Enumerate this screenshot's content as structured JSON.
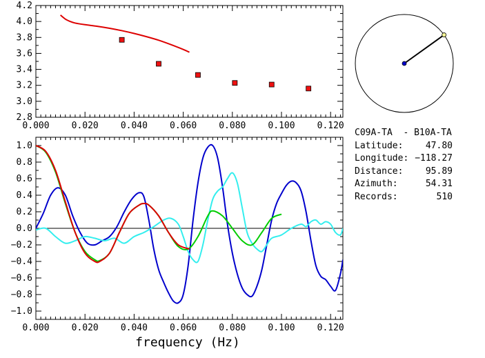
{
  "station_pair": "C09A-TA  - B10A-TA",
  "info": [
    {
      "label": "Latitude:",
      "value": "47.80"
    },
    {
      "label": "Longitude:",
      "value": "-118.27"
    },
    {
      "label": "Distance:",
      "value": "95.89"
    },
    {
      "label": "Azimuth:",
      "value": "54.31"
    },
    {
      "label": "Records:",
      "value": "510"
    }
  ],
  "colors": {
    "red": "#dd0000",
    "blue": "#0000cc",
    "green": "#00cc00",
    "cyan": "#33eeee",
    "marker": "#ee1111"
  },
  "chart_data": [
    {
      "type": "line",
      "title": "",
      "xlabel": "",
      "ylabel": "",
      "xlim": [
        0.0,
        0.125
      ],
      "ylim": [
        2.8,
        4.2
      ],
      "xticks": [
        "0.000",
        "0.020",
        "0.040",
        "0.060",
        "0.080",
        "0.100",
        "0.120"
      ],
      "yticks": [
        "2.8",
        "3.0",
        "3.2",
        "3.4",
        "3.6",
        "3.8",
        "4.0",
        "4.2"
      ],
      "series": [
        {
          "kind": "line",
          "color": "#dd0000",
          "x": [
            0.01,
            0.012,
            0.014,
            0.016,
            0.02,
            0.025,
            0.03,
            0.035,
            0.04,
            0.045,
            0.05,
            0.055,
            0.06,
            0.0625
          ],
          "y": [
            4.08,
            4.03,
            4.0,
            3.98,
            3.96,
            3.94,
            3.915,
            3.885,
            3.85,
            3.81,
            3.765,
            3.71,
            3.65,
            3.615
          ]
        },
        {
          "kind": "markers",
          "color": "#ee1111",
          "x": [
            0.035,
            0.05,
            0.066,
            0.081,
            0.096,
            0.111
          ],
          "y": [
            3.77,
            3.47,
            3.33,
            3.23,
            3.21,
            3.16
          ]
        }
      ]
    },
    {
      "type": "line",
      "title": "",
      "xlabel": "frequency (Hz)",
      "ylabel": "",
      "xlim": [
        0.0,
        0.125
      ],
      "ylim": [
        -1.1,
        1.1
      ],
      "xticks": [
        "0.000",
        "0.020",
        "0.040",
        "0.060",
        "0.080",
        "0.100",
        "0.120"
      ],
      "yticks": [
        "1.0",
        "0.8",
        "0.6",
        "0.4",
        "0.2",
        "0.0",
        "-0.2",
        "-0.4",
        "-0.6",
        "-0.8",
        "-1.0"
      ],
      "zero_line": true,
      "series": [
        {
          "color": "#0000cc",
          "x": [
            0.0,
            0.003,
            0.006,
            0.009,
            0.012,
            0.015,
            0.018,
            0.021,
            0.024,
            0.027,
            0.03,
            0.033,
            0.036,
            0.039,
            0.042,
            0.044,
            0.046,
            0.048,
            0.05,
            0.052,
            0.054,
            0.056,
            0.058,
            0.06,
            0.062,
            0.064,
            0.066,
            0.068,
            0.07,
            0.072,
            0.074,
            0.076,
            0.078,
            0.08,
            0.082,
            0.084,
            0.086,
            0.088,
            0.09,
            0.092,
            0.094,
            0.096,
            0.098,
            0.1,
            0.102,
            0.104,
            0.106,
            0.108,
            0.11,
            0.112,
            0.114,
            0.116,
            0.118,
            0.12,
            0.122,
            0.124,
            0.125
          ],
          "y": [
            0.0,
            0.18,
            0.4,
            0.49,
            0.4,
            0.15,
            -0.05,
            -0.18,
            -0.2,
            -0.15,
            -0.1,
            0.02,
            0.2,
            0.35,
            0.43,
            0.38,
            0.1,
            -0.25,
            -0.5,
            -0.65,
            -0.78,
            -0.88,
            -0.9,
            -0.8,
            -0.45,
            0.1,
            0.55,
            0.85,
            0.98,
            1.0,
            0.85,
            0.5,
            0.05,
            -0.3,
            -0.55,
            -0.72,
            -0.8,
            -0.82,
            -0.7,
            -0.5,
            -0.2,
            0.1,
            0.3,
            0.42,
            0.52,
            0.57,
            0.55,
            0.45,
            0.2,
            -0.15,
            -0.45,
            -0.58,
            -0.62,
            -0.7,
            -0.75,
            -0.55,
            -0.38
          ]
        },
        {
          "color": "#33eeee",
          "x": [
            0.0,
            0.004,
            0.008,
            0.012,
            0.016,
            0.02,
            0.024,
            0.028,
            0.032,
            0.036,
            0.04,
            0.044,
            0.048,
            0.052,
            0.055,
            0.058,
            0.06,
            0.062,
            0.064,
            0.066,
            0.068,
            0.07,
            0.072,
            0.074,
            0.076,
            0.078,
            0.08,
            0.082,
            0.084,
            0.086,
            0.088,
            0.09,
            0.092,
            0.094,
            0.096,
            0.1,
            0.104,
            0.108,
            0.11,
            0.112,
            0.114,
            0.116,
            0.118,
            0.12,
            0.122,
            0.124,
            0.125
          ],
          "y": [
            -0.02,
            0.0,
            -0.1,
            -0.18,
            -0.15,
            -0.1,
            -0.12,
            -0.15,
            -0.12,
            -0.18,
            -0.1,
            -0.05,
            0.02,
            0.1,
            0.12,
            0.05,
            -0.1,
            -0.28,
            -0.38,
            -0.4,
            -0.2,
            0.1,
            0.35,
            0.45,
            0.5,
            0.6,
            0.67,
            0.55,
            0.25,
            -0.05,
            -0.18,
            -0.25,
            -0.28,
            -0.2,
            -0.12,
            -0.08,
            0.0,
            0.05,
            0.02,
            0.08,
            0.1,
            0.05,
            0.08,
            0.05,
            -0.05,
            -0.08,
            0.0
          ]
        },
        {
          "color": "#00cc00",
          "x": [
            0.0,
            0.004,
            0.008,
            0.012,
            0.016,
            0.02,
            0.024,
            0.026,
            0.03,
            0.034,
            0.038,
            0.042,
            0.044,
            0.046,
            0.05,
            0.054,
            0.058,
            0.062,
            0.066,
            0.07,
            0.072,
            0.076,
            0.08,
            0.084,
            0.088,
            0.092,
            0.096,
            0.1
          ],
          "y": [
            1.0,
            0.92,
            0.68,
            0.3,
            -0.05,
            -0.28,
            -0.38,
            -0.39,
            -0.3,
            -0.05,
            0.18,
            0.28,
            0.3,
            0.28,
            0.15,
            -0.05,
            -0.22,
            -0.25,
            -0.1,
            0.15,
            0.21,
            0.15,
            0.0,
            -0.15,
            -0.2,
            -0.05,
            0.12,
            0.17
          ]
        },
        {
          "color": "#dd0000",
          "x": [
            0.0,
            0.004,
            0.008,
            0.012,
            0.016,
            0.02,
            0.024,
            0.026,
            0.03,
            0.034,
            0.038,
            0.042,
            0.044,
            0.046,
            0.05,
            0.054,
            0.058,
            0.0625
          ],
          "y": [
            1.0,
            0.93,
            0.7,
            0.32,
            -0.05,
            -0.3,
            -0.4,
            -0.4,
            -0.3,
            -0.05,
            0.18,
            0.28,
            0.3,
            0.28,
            0.15,
            -0.05,
            -0.2,
            -0.25
          ]
        }
      ]
    }
  ],
  "azimuth_diagram": {
    "azimuth_deg": 54.31,
    "center_color": "#0000cc"
  }
}
